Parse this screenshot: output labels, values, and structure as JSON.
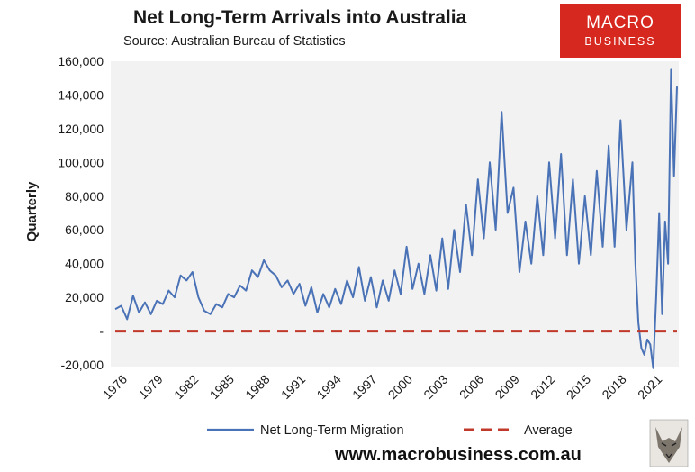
{
  "header": {
    "title": "Net Long-Term Arrivals into Australia",
    "subtitle": "Source: Australian Bureau of Statistics"
  },
  "logo": {
    "line1": "MACRO",
    "line2": "BUSINESS",
    "color": "#d7281f"
  },
  "footer": {
    "website": "www.macrobusiness.com.au",
    "mascot_icon": "wolf-icon"
  },
  "chart_data": {
    "type": "line",
    "title": "Net Long-Term Arrivals into Australia",
    "ylabel": "Quarterly",
    "xlabel": "",
    "ylim": [
      -20000,
      160000
    ],
    "xlim": [
      1976,
      2023.25
    ],
    "grid": false,
    "plot_background": "#f2f2f2",
    "legend_position": "bottom",
    "y_ticks": [
      -20000,
      0,
      20000,
      40000,
      60000,
      80000,
      100000,
      120000,
      140000,
      160000
    ],
    "y_tick_labels": [
      "-20,000",
      "-",
      "20,000",
      "40,000",
      "60,000",
      "80,000",
      "100,000",
      "120,000",
      "140,000",
      "160,000"
    ],
    "x_tick_labels": [
      "1976",
      "1979",
      "1982",
      "1985",
      "1988",
      "1991",
      "1994",
      "1997",
      "2000",
      "2003",
      "2006",
      "2009",
      "2012",
      "2015",
      "2018",
      "2021"
    ],
    "series": [
      {
        "name": "Net Long-Term Migration",
        "color": "#4a72b6",
        "style": "solid",
        "points": [
          [
            1976.0,
            13000
          ],
          [
            1976.5,
            15000
          ],
          [
            1977.0,
            7000
          ],
          [
            1977.5,
            21000
          ],
          [
            1978.0,
            11000
          ],
          [
            1978.5,
            17000
          ],
          [
            1979.0,
            10000
          ],
          [
            1979.5,
            18000
          ],
          [
            1980.0,
            16000
          ],
          [
            1980.5,
            24000
          ],
          [
            1981.0,
            20000
          ],
          [
            1981.5,
            33000
          ],
          [
            1982.0,
            30000
          ],
          [
            1982.5,
            35000
          ],
          [
            1983.0,
            20000
          ],
          [
            1983.5,
            12000
          ],
          [
            1984.0,
            10000
          ],
          [
            1984.5,
            16000
          ],
          [
            1985.0,
            14000
          ],
          [
            1985.5,
            22000
          ],
          [
            1986.0,
            20000
          ],
          [
            1986.5,
            27000
          ],
          [
            1987.0,
            24000
          ],
          [
            1987.5,
            36000
          ],
          [
            1988.0,
            32000
          ],
          [
            1988.5,
            42000
          ],
          [
            1989.0,
            36000
          ],
          [
            1989.5,
            33000
          ],
          [
            1990.0,
            26000
          ],
          [
            1990.5,
            30000
          ],
          [
            1991.0,
            22000
          ],
          [
            1991.5,
            28000
          ],
          [
            1992.0,
            15000
          ],
          [
            1992.5,
            26000
          ],
          [
            1993.0,
            11000
          ],
          [
            1993.5,
            22000
          ],
          [
            1994.0,
            14000
          ],
          [
            1994.5,
            25000
          ],
          [
            1995.0,
            16000
          ],
          [
            1995.5,
            30000
          ],
          [
            1996.0,
            20000
          ],
          [
            1996.5,
            38000
          ],
          [
            1997.0,
            18000
          ],
          [
            1997.5,
            32000
          ],
          [
            1998.0,
            14000
          ],
          [
            1998.5,
            30000
          ],
          [
            1999.0,
            18000
          ],
          [
            1999.5,
            36000
          ],
          [
            2000.0,
            22000
          ],
          [
            2000.5,
            50000
          ],
          [
            2001.0,
            25000
          ],
          [
            2001.5,
            40000
          ],
          [
            2002.0,
            22000
          ],
          [
            2002.5,
            45000
          ],
          [
            2003.0,
            24000
          ],
          [
            2003.5,
            55000
          ],
          [
            2004.0,
            25000
          ],
          [
            2004.5,
            60000
          ],
          [
            2005.0,
            35000
          ],
          [
            2005.5,
            75000
          ],
          [
            2006.0,
            45000
          ],
          [
            2006.5,
            90000
          ],
          [
            2007.0,
            55000
          ],
          [
            2007.5,
            100000
          ],
          [
            2008.0,
            60000
          ],
          [
            2008.5,
            130000
          ],
          [
            2009.0,
            70000
          ],
          [
            2009.5,
            85000
          ],
          [
            2010.0,
            35000
          ],
          [
            2010.5,
            65000
          ],
          [
            2011.0,
            40000
          ],
          [
            2011.5,
            80000
          ],
          [
            2012.0,
            45000
          ],
          [
            2012.5,
            100000
          ],
          [
            2013.0,
            55000
          ],
          [
            2013.5,
            105000
          ],
          [
            2014.0,
            45000
          ],
          [
            2014.5,
            90000
          ],
          [
            2015.0,
            40000
          ],
          [
            2015.5,
            80000
          ],
          [
            2016.0,
            45000
          ],
          [
            2016.5,
            95000
          ],
          [
            2017.0,
            50000
          ],
          [
            2017.5,
            110000
          ],
          [
            2018.0,
            50000
          ],
          [
            2018.5,
            125000
          ],
          [
            2019.0,
            60000
          ],
          [
            2019.5,
            100000
          ],
          [
            2019.75,
            40000
          ],
          [
            2020.0,
            5000
          ],
          [
            2020.25,
            -10000
          ],
          [
            2020.5,
            -14000
          ],
          [
            2020.75,
            -5000
          ],
          [
            2021.0,
            -8000
          ],
          [
            2021.25,
            -22000
          ],
          [
            2021.5,
            20000
          ],
          [
            2021.75,
            70000
          ],
          [
            2022.0,
            10000
          ],
          [
            2022.25,
            65000
          ],
          [
            2022.5,
            40000
          ],
          [
            2022.75,
            155000
          ],
          [
            2023.0,
            92000
          ],
          [
            2023.25,
            145000
          ]
        ]
      },
      {
        "name": "Average",
        "color": "#c0392b",
        "style": "dashed",
        "points": [
          [
            1976.0,
            0
          ],
          [
            2023.25,
            0
          ]
        ]
      }
    ]
  }
}
